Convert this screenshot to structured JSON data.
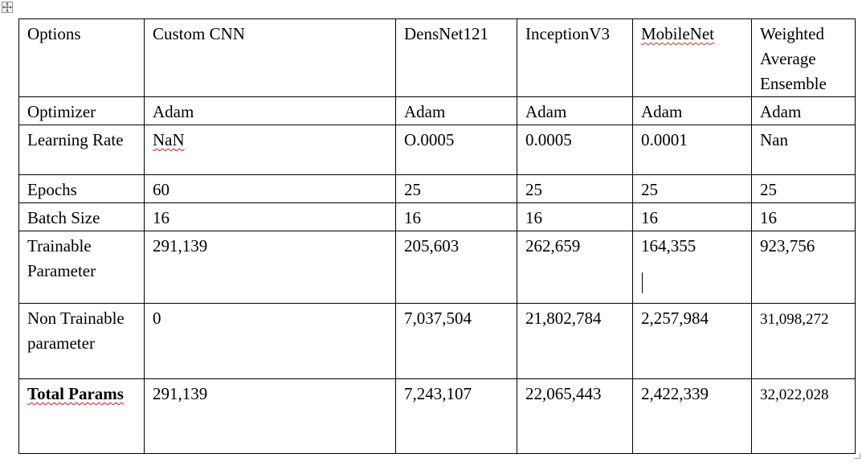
{
  "table": {
    "columns": [
      "Options",
      "Custom CNN",
      "DensNet121",
      "InceptionV3",
      "MobileNet",
      "Weighted Average Ensemble"
    ],
    "rows": [
      {
        "label": "Optimizer",
        "cells": [
          "Adam",
          "Adam",
          "Adam",
          "Adam",
          "Adam"
        ]
      },
      {
        "label": "Learning Rate",
        "cells": [
          "NaN",
          "O.0005",
          "0.0005",
          "0.0001",
          "Nan"
        ]
      },
      {
        "label": "Epochs",
        "cells": [
          "60",
          "25",
          "25",
          "25",
          "25"
        ]
      },
      {
        "label": "Batch Size",
        "cells": [
          "16",
          "16",
          "16",
          "16",
          "16"
        ]
      },
      {
        "label": "Trainable Parameter",
        "cells": [
          "291,139",
          "205,603",
          "262,659",
          "164,355",
          "923,756"
        ]
      },
      {
        "label": "Non Trainable parameter",
        "cells": [
          "0",
          "7,037,504",
          "21,802,784",
          "2,257,984",
          "31,098,272"
        ]
      },
      {
        "label": "Total Params",
        "cells": [
          "291,139",
          "7,243,107",
          "22,065,443",
          "2,422,339",
          "32,022,028"
        ]
      }
    ]
  }
}
